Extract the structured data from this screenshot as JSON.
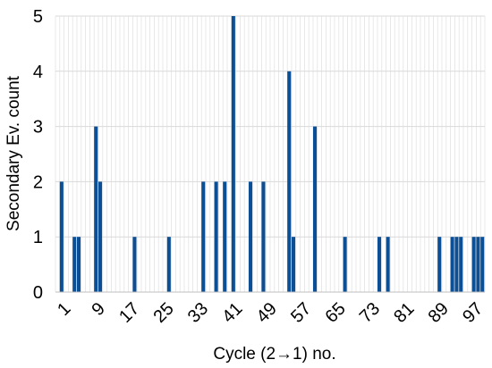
{
  "chart_data": {
    "type": "bar",
    "xlabel": "Cycle (2→1) no.",
    "ylabel": "Secondary Ev. count",
    "ylim": [
      0,
      5
    ],
    "yticks": [
      0,
      1,
      2,
      3,
      4,
      5
    ],
    "xlim": [
      1,
      100
    ],
    "xticks": [
      1,
      9,
      17,
      25,
      33,
      41,
      49,
      57,
      65,
      73,
      81,
      89,
      97
    ],
    "grid": "vertical lines at every cycle and horizontal lines at every count",
    "bar_color": "#0d4f94",
    "x": [
      2,
      5,
      6,
      10,
      11,
      19,
      27,
      35,
      38,
      40,
      42,
      46,
      49,
      55,
      56,
      61,
      68,
      76,
      78,
      90,
      93,
      94,
      95,
      98,
      99,
      100
    ],
    "values": [
      2,
      1,
      1,
      3,
      2,
      1,
      1,
      2,
      2,
      2,
      5,
      2,
      2,
      4,
      1,
      3,
      1,
      1,
      1,
      1,
      1,
      1,
      1,
      1,
      1,
      1
    ]
  }
}
